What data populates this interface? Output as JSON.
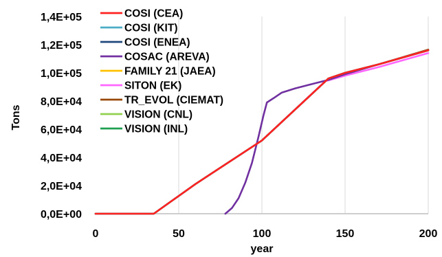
{
  "chart_data": {
    "type": "line",
    "xlabel": "year",
    "ylabel": "Tons",
    "xlim": [
      0,
      200
    ],
    "ylim": [
      0,
      140000
    ],
    "x_ticks": [
      0,
      50,
      100,
      150,
      200
    ],
    "x_tick_labels": [
      "0",
      "50",
      "100",
      "150",
      "200"
    ],
    "y_ticks": [
      0,
      20000,
      40000,
      60000,
      80000,
      100000,
      120000,
      140000
    ],
    "y_tick_labels": [
      "0,0E+00",
      "2,0E+04",
      "4,0E+04",
      "6,0E+04",
      "8,0E+04",
      "1,0E+05",
      "1,2E+05",
      "1,4E+05"
    ],
    "grid": "vertical",
    "legend_position": "top-left",
    "series": [
      {
        "name": "COSI (CEA)",
        "color": "#ff2020",
        "points": [
          [
            0,
            0
          ],
          [
            35,
            0
          ],
          [
            60,
            21000
          ],
          [
            100,
            52000
          ],
          [
            140,
            96000
          ],
          [
            150,
            100000
          ],
          [
            170,
            106000
          ],
          [
            200,
            116000
          ]
        ]
      },
      {
        "name": "COSI (KIT)",
        "color": "#4bacc6",
        "points": [
          [
            0,
            0
          ],
          [
            35,
            0
          ],
          [
            60,
            21000
          ],
          [
            100,
            52000
          ],
          [
            140,
            96000
          ],
          [
            150,
            100000
          ],
          [
            170,
            106000
          ],
          [
            200,
            116000
          ]
        ]
      },
      {
        "name": "COSI (ENEA)",
        "color": "#1f497d",
        "points": [
          [
            0,
            0
          ],
          [
            35,
            0
          ],
          [
            60,
            21000
          ],
          [
            100,
            52000
          ],
          [
            140,
            96000
          ],
          [
            150,
            100000
          ],
          [
            170,
            106000
          ],
          [
            200,
            116000
          ]
        ]
      },
      {
        "name": "COSAC (AREVA)",
        "color": "#7030a0",
        "points": [
          [
            78,
            0
          ],
          [
            82,
            4000
          ],
          [
            86,
            11000
          ],
          [
            90,
            22000
          ],
          [
            94,
            36000
          ],
          [
            98,
            55000
          ],
          [
            101,
            70000
          ],
          [
            103,
            79000
          ],
          [
            107,
            82000
          ],
          [
            112,
            86000
          ],
          [
            120,
            89000
          ],
          [
            130,
            92000
          ],
          [
            140,
            95000
          ],
          [
            150,
            99000
          ],
          [
            170,
            106000
          ],
          [
            200,
            116000
          ]
        ]
      },
      {
        "name": "FAMILY 21 (JAEA)",
        "color": "#ffc000",
        "points": [
          [
            0,
            0
          ],
          [
            35,
            0
          ],
          [
            60,
            21000
          ],
          [
            100,
            52000
          ],
          [
            140,
            96000
          ],
          [
            150,
            100000
          ],
          [
            170,
            106000
          ],
          [
            200,
            116000
          ]
        ]
      },
      {
        "name": "SITON (EK)",
        "color": "#ff66ff",
        "points": [
          [
            0,
            0
          ],
          [
            35,
            0
          ],
          [
            60,
            21000
          ],
          [
            100,
            52000
          ],
          [
            138,
            94000
          ],
          [
            150,
            98000
          ],
          [
            170,
            104000
          ],
          [
            200,
            114000
          ]
        ]
      },
      {
        "name": "TR_EVOL (CIEMAT)",
        "color": "#974706",
        "points": [
          [
            0,
            0
          ],
          [
            35,
            0
          ],
          [
            60,
            21000
          ],
          [
            100,
            52000
          ],
          [
            140,
            96000
          ],
          [
            150,
            100000
          ],
          [
            170,
            106000
          ],
          [
            200,
            116500
          ]
        ]
      },
      {
        "name": "VISION (CNL)",
        "color": "#92d050",
        "points": [
          [
            0,
            0
          ],
          [
            35,
            0
          ],
          [
            60,
            21000
          ],
          [
            100,
            52000
          ],
          [
            140,
            96000
          ],
          [
            150,
            100000
          ],
          [
            170,
            106000
          ],
          [
            200,
            116000
          ]
        ]
      },
      {
        "name": "VISION (INL)",
        "color": "#1e9e4f",
        "points": [
          [
            0,
            0
          ],
          [
            35,
            0
          ],
          [
            60,
            21000
          ],
          [
            100,
            52000
          ],
          [
            140,
            96000
          ],
          [
            150,
            100000
          ],
          [
            170,
            106000
          ],
          [
            200,
            116000
          ]
        ]
      }
    ]
  }
}
